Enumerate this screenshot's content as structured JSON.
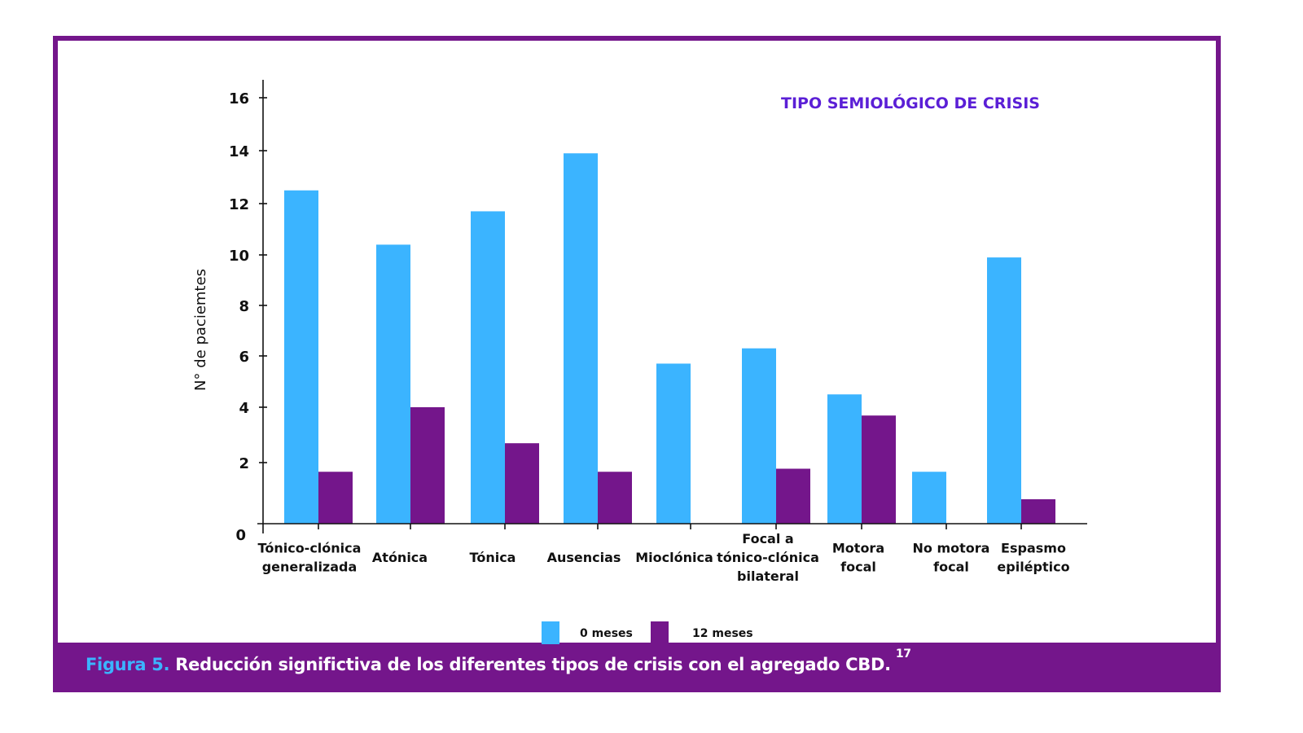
{
  "caption": {
    "figure_label": "Figura 5.",
    "text": "Reducción significtiva de los diferentes tipos de crisis con el agregado CBD.",
    "reference": "17"
  },
  "colors": {
    "frame": "#74168b",
    "series_0": "#3bb4ff",
    "series_1": "#74168b",
    "title": "#5b1fd6",
    "figure_label": "#3bb4ff"
  },
  "chart_data": {
    "type": "bar",
    "title": "TIPO SEMIOLÓGICO DE CRISIS",
    "xlabel": "",
    "ylabel": "N° de paciemtes",
    "ylim": [
      0,
      16
    ],
    "yticks": [
      0,
      2,
      4,
      6,
      8,
      10,
      12,
      14,
      16
    ],
    "grid": false,
    "legend_position": "bottom-center",
    "categories": [
      [
        "Tónico-clónica",
        "generalizada"
      ],
      [
        "Atónica"
      ],
      [
        "Tónica"
      ],
      [
        "Ausencias"
      ],
      [
        "Mioclónica"
      ],
      [
        "Focal  a",
        "tónico-clónica",
        "bilateral"
      ],
      [
        "Motora",
        "focal"
      ],
      [
        "No motora",
        "focal"
      ],
      [
        "Espasmo",
        "epiléptico"
      ]
    ],
    "series": [
      {
        "name": "0 meses",
        "values": [
          12.5,
          10.4,
          11.7,
          13.9,
          5.7,
          6.3,
          4.5,
          1.7,
          9.9
        ]
      },
      {
        "name": "12 meses",
        "values": [
          1.7,
          4.0,
          2.7,
          1.7,
          0,
          1.8,
          3.7,
          0,
          0.8
        ]
      }
    ]
  }
}
